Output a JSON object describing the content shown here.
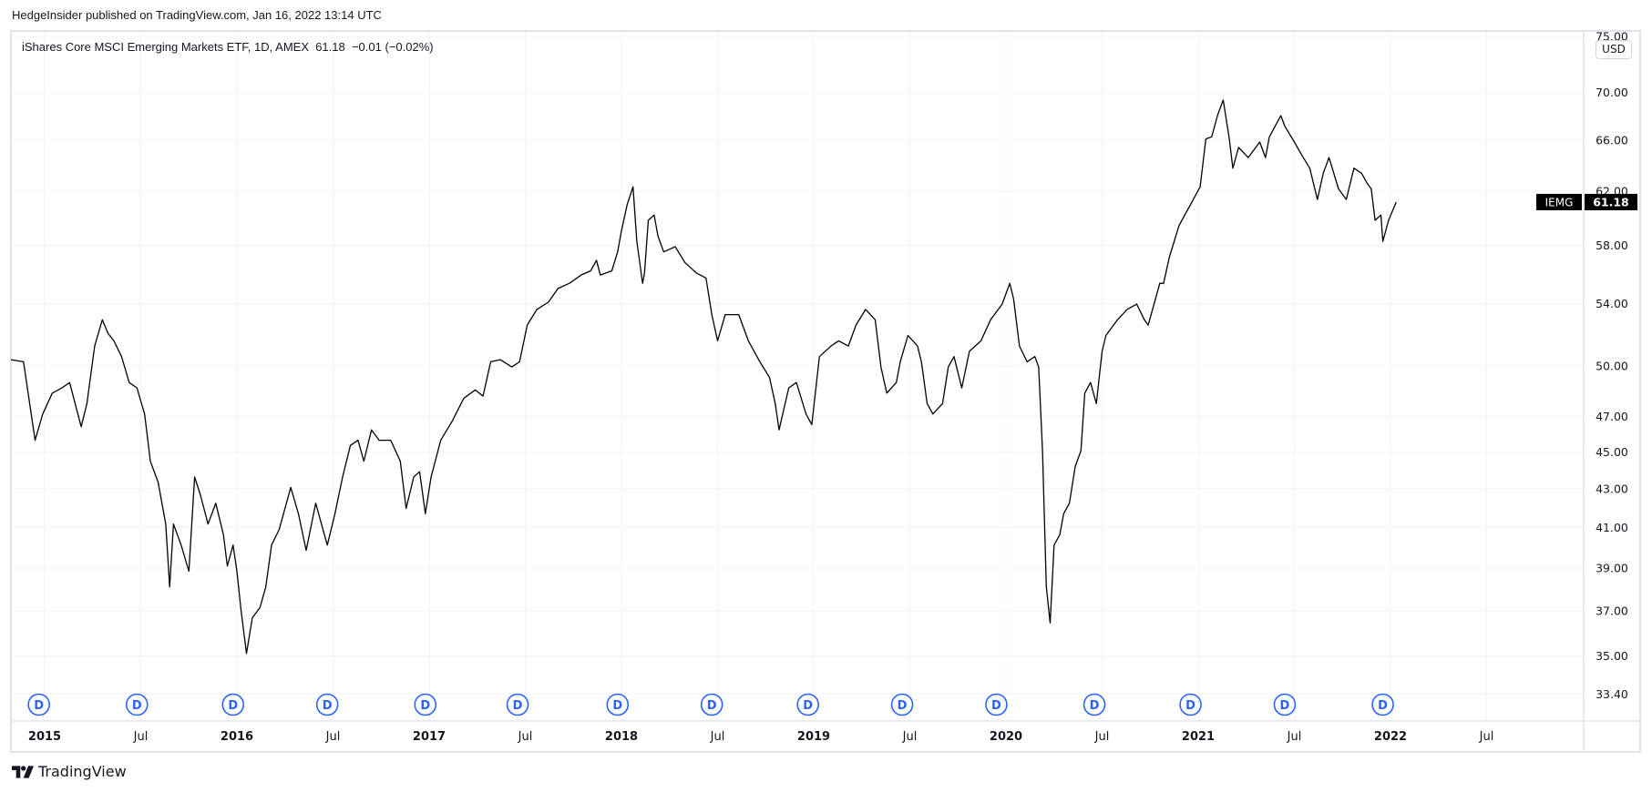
{
  "publisher": "HedgeInsider published on TradingView.com, Jan 16, 2022 13:14 UTC",
  "legend": "iShares Core MSCI Emerging Markets ETF, 1D, AMEX  61.18  −0.01 (−0.02%)",
  "currency": "USD",
  "brand": "TradingView",
  "colors": {
    "line": "#000000",
    "grid": "#f0f3fa",
    "border": "#e0e3eb",
    "dividend": "#2962ff",
    "tag": "#000000"
  },
  "chart_data": {
    "type": "line",
    "title": "iShares Core MSCI Emerging Markets ETF, 1D, AMEX",
    "symbol": "IEMG",
    "last_price": "61.18",
    "y_scale": "log",
    "ylim": [
      33.0,
      75.5
    ],
    "xlim": [
      2014.82,
      2022.93
    ],
    "y_ticks": [
      "75.00",
      "70.00",
      "66.00",
      "62.00",
      "58.00",
      "54.00",
      "50.00",
      "47.00",
      "45.00",
      "43.00",
      "41.00",
      "39.00",
      "37.00",
      "35.00",
      "33.40"
    ],
    "x_ticks": [
      {
        "t": 2015.0,
        "label": "2015",
        "major": true
      },
      {
        "t": 2015.5,
        "label": "Jul",
        "major": false
      },
      {
        "t": 2016.0,
        "label": "2016",
        "major": true
      },
      {
        "t": 2016.5,
        "label": "Jul",
        "major": false
      },
      {
        "t": 2017.0,
        "label": "2017",
        "major": true
      },
      {
        "t": 2017.5,
        "label": "Jul",
        "major": false
      },
      {
        "t": 2018.0,
        "label": "2018",
        "major": true
      },
      {
        "t": 2018.5,
        "label": "Jul",
        "major": false
      },
      {
        "t": 2019.0,
        "label": "2019",
        "major": true
      },
      {
        "t": 2019.5,
        "label": "Jul",
        "major": false
      },
      {
        "t": 2020.0,
        "label": "2020",
        "major": true
      },
      {
        "t": 2020.5,
        "label": "Jul",
        "major": false
      },
      {
        "t": 2021.0,
        "label": "2021",
        "major": true
      },
      {
        "t": 2021.5,
        "label": "Jul",
        "major": false
      },
      {
        "t": 2022.0,
        "label": "2022",
        "major": true
      },
      {
        "t": 2022.5,
        "label": "Jul",
        "major": false
      }
    ],
    "dividend_label": "D",
    "dividend_dates": [
      2014.97,
      2015.48,
      2015.98,
      2016.47,
      2016.98,
      2017.46,
      2017.98,
      2018.47,
      2018.97,
      2019.46,
      2019.95,
      2020.46,
      2020.96,
      2021.45,
      2021.96
    ],
    "series": [
      {
        "name": "IEMG",
        "points": [
          [
            2014.825,
            50.4
          ],
          [
            2014.89,
            50.27
          ],
          [
            2014.95,
            45.64
          ],
          [
            2014.99,
            47.14
          ],
          [
            2015.04,
            48.37
          ],
          [
            2015.09,
            48.68
          ],
          [
            2015.13,
            49.0
          ],
          [
            2015.19,
            46.41
          ],
          [
            2015.22,
            47.75
          ],
          [
            2015.26,
            51.25
          ],
          [
            2015.3,
            52.93
          ],
          [
            2015.33,
            52.05
          ],
          [
            2015.36,
            51.58
          ],
          [
            2015.4,
            50.59
          ],
          [
            2015.44,
            49.0
          ],
          [
            2015.48,
            48.68
          ],
          [
            2015.52,
            47.14
          ],
          [
            2015.55,
            44.48
          ],
          [
            2015.59,
            43.35
          ],
          [
            2015.63,
            41.17
          ],
          [
            2015.65,
            38.11
          ],
          [
            2015.67,
            41.17
          ],
          [
            2015.71,
            40.12
          ],
          [
            2015.75,
            38.85
          ],
          [
            2015.78,
            43.63
          ],
          [
            2015.81,
            42.68
          ],
          [
            2015.85,
            41.17
          ],
          [
            2015.89,
            42.24
          ],
          [
            2015.93,
            40.64
          ],
          [
            2015.95,
            39.1
          ],
          [
            2015.98,
            40.12
          ],
          [
            2016.0,
            38.85
          ],
          [
            2016.02,
            37.15
          ],
          [
            2016.05,
            35.11
          ],
          [
            2016.08,
            36.68
          ],
          [
            2016.12,
            37.15
          ],
          [
            2016.15,
            38.11
          ],
          [
            2016.18,
            40.12
          ],
          [
            2016.22,
            40.9
          ],
          [
            2016.28,
            43.07
          ],
          [
            2016.32,
            41.7
          ],
          [
            2016.36,
            39.86
          ],
          [
            2016.41,
            42.24
          ],
          [
            2016.47,
            40.12
          ],
          [
            2016.51,
            41.7
          ],
          [
            2016.55,
            43.63
          ],
          [
            2016.59,
            45.35
          ],
          [
            2016.63,
            45.64
          ],
          [
            2016.66,
            44.48
          ],
          [
            2016.7,
            46.23
          ],
          [
            2016.74,
            45.64
          ],
          [
            2016.8,
            45.64
          ],
          [
            2016.85,
            44.48
          ],
          [
            2016.88,
            41.97
          ],
          [
            2016.92,
            43.63
          ],
          [
            2016.95,
            43.91
          ],
          [
            2016.98,
            41.7
          ],
          [
            2017.01,
            43.63
          ],
          [
            2017.06,
            45.64
          ],
          [
            2017.12,
            46.73
          ],
          [
            2017.18,
            48.06
          ],
          [
            2017.24,
            48.56
          ],
          [
            2017.28,
            48.19
          ],
          [
            2017.32,
            50.27
          ],
          [
            2017.37,
            50.4
          ],
          [
            2017.43,
            49.95
          ],
          [
            2017.47,
            50.27
          ],
          [
            2017.51,
            52.59
          ],
          [
            2017.56,
            53.61
          ],
          [
            2017.62,
            54.09
          ],
          [
            2017.67,
            55.01
          ],
          [
            2017.73,
            55.36
          ],
          [
            2017.79,
            55.93
          ],
          [
            2017.84,
            56.22
          ],
          [
            2017.87,
            56.95
          ],
          [
            2017.89,
            55.93
          ],
          [
            2017.95,
            56.22
          ],
          [
            2017.98,
            57.54
          ],
          [
            2018.0,
            59.05
          ],
          [
            2018.03,
            60.99
          ],
          [
            2018.06,
            62.34
          ],
          [
            2018.08,
            58.29
          ],
          [
            2018.11,
            55.36
          ],
          [
            2018.12,
            56.07
          ],
          [
            2018.14,
            59.82
          ],
          [
            2018.17,
            60.21
          ],
          [
            2018.19,
            58.67
          ],
          [
            2018.22,
            57.54
          ],
          [
            2018.28,
            57.91
          ],
          [
            2018.33,
            56.8
          ],
          [
            2018.39,
            56.07
          ],
          [
            2018.44,
            55.72
          ],
          [
            2018.47,
            53.27
          ],
          [
            2018.5,
            51.58
          ],
          [
            2018.54,
            53.27
          ],
          [
            2018.58,
            53.27
          ],
          [
            2018.61,
            53.27
          ],
          [
            2018.66,
            51.58
          ],
          [
            2018.72,
            50.27
          ],
          [
            2018.77,
            49.31
          ],
          [
            2018.8,
            47.75
          ],
          [
            2018.82,
            46.23
          ],
          [
            2018.87,
            48.68
          ],
          [
            2018.91,
            49.0
          ],
          [
            2018.96,
            47.14
          ],
          [
            2018.99,
            46.53
          ],
          [
            2019.03,
            50.59
          ],
          [
            2019.09,
            51.25
          ],
          [
            2019.13,
            51.58
          ],
          [
            2019.18,
            51.25
          ],
          [
            2019.22,
            52.59
          ],
          [
            2019.27,
            53.61
          ],
          [
            2019.32,
            52.93
          ],
          [
            2019.35,
            49.95
          ],
          [
            2019.38,
            48.37
          ],
          [
            2019.43,
            49.0
          ],
          [
            2019.45,
            50.27
          ],
          [
            2019.49,
            51.92
          ],
          [
            2019.54,
            51.25
          ],
          [
            2019.56,
            50.27
          ],
          [
            2019.59,
            47.75
          ],
          [
            2019.62,
            47.14
          ],
          [
            2019.67,
            47.75
          ],
          [
            2019.7,
            49.95
          ],
          [
            2019.73,
            50.59
          ],
          [
            2019.77,
            48.68
          ],
          [
            2019.81,
            50.92
          ],
          [
            2019.87,
            51.58
          ],
          [
            2019.92,
            52.93
          ],
          [
            2019.98,
            53.96
          ],
          [
            2020.02,
            55.36
          ],
          [
            2020.04,
            54.3
          ],
          [
            2020.07,
            51.25
          ],
          [
            2020.11,
            50.27
          ],
          [
            2020.15,
            50.59
          ],
          [
            2020.17,
            49.95
          ],
          [
            2020.19,
            45.06
          ],
          [
            2020.21,
            38.11
          ],
          [
            2020.23,
            36.45
          ],
          [
            2020.25,
            40.12
          ],
          [
            2020.28,
            40.64
          ],
          [
            2020.3,
            41.7
          ],
          [
            2020.33,
            42.24
          ],
          [
            2020.36,
            44.19
          ],
          [
            2020.39,
            45.06
          ],
          [
            2020.41,
            48.37
          ],
          [
            2020.44,
            49.0
          ],
          [
            2020.47,
            47.75
          ],
          [
            2020.5,
            50.92
          ],
          [
            2020.52,
            51.92
          ],
          [
            2020.58,
            52.93
          ],
          [
            2020.63,
            53.61
          ],
          [
            2020.68,
            53.96
          ],
          [
            2020.72,
            52.93
          ],
          [
            2020.74,
            52.59
          ],
          [
            2020.77,
            53.96
          ],
          [
            2020.8,
            55.36
          ],
          [
            2020.82,
            55.36
          ],
          [
            2020.85,
            57.17
          ],
          [
            2020.9,
            59.43
          ],
          [
            2020.93,
            60.21
          ],
          [
            2020.96,
            60.99
          ],
          [
            2021.01,
            62.34
          ],
          [
            2021.04,
            66.12
          ],
          [
            2021.07,
            66.29
          ],
          [
            2021.1,
            68.04
          ],
          [
            2021.13,
            69.37
          ],
          [
            2021.16,
            66.29
          ],
          [
            2021.18,
            63.79
          ],
          [
            2021.21,
            65.44
          ],
          [
            2021.26,
            64.62
          ],
          [
            2021.32,
            65.87
          ],
          [
            2021.35,
            64.62
          ],
          [
            2021.37,
            66.29
          ],
          [
            2021.4,
            67.17
          ],
          [
            2021.43,
            68.04
          ],
          [
            2021.45,
            67.17
          ],
          [
            2021.5,
            65.87
          ],
          [
            2021.54,
            64.79
          ],
          [
            2021.58,
            63.79
          ],
          [
            2021.62,
            61.38
          ],
          [
            2021.65,
            63.38
          ],
          [
            2021.68,
            64.62
          ],
          [
            2021.73,
            62.18
          ],
          [
            2021.77,
            61.38
          ],
          [
            2021.81,
            63.79
          ],
          [
            2021.85,
            63.38
          ],
          [
            2021.88,
            62.58
          ],
          [
            2021.9,
            62.18
          ],
          [
            2021.92,
            59.82
          ],
          [
            2021.95,
            60.21
          ],
          [
            2021.96,
            58.29
          ],
          [
            2021.99,
            59.82
          ],
          [
            2022.03,
            61.18
          ]
        ]
      }
    ]
  }
}
